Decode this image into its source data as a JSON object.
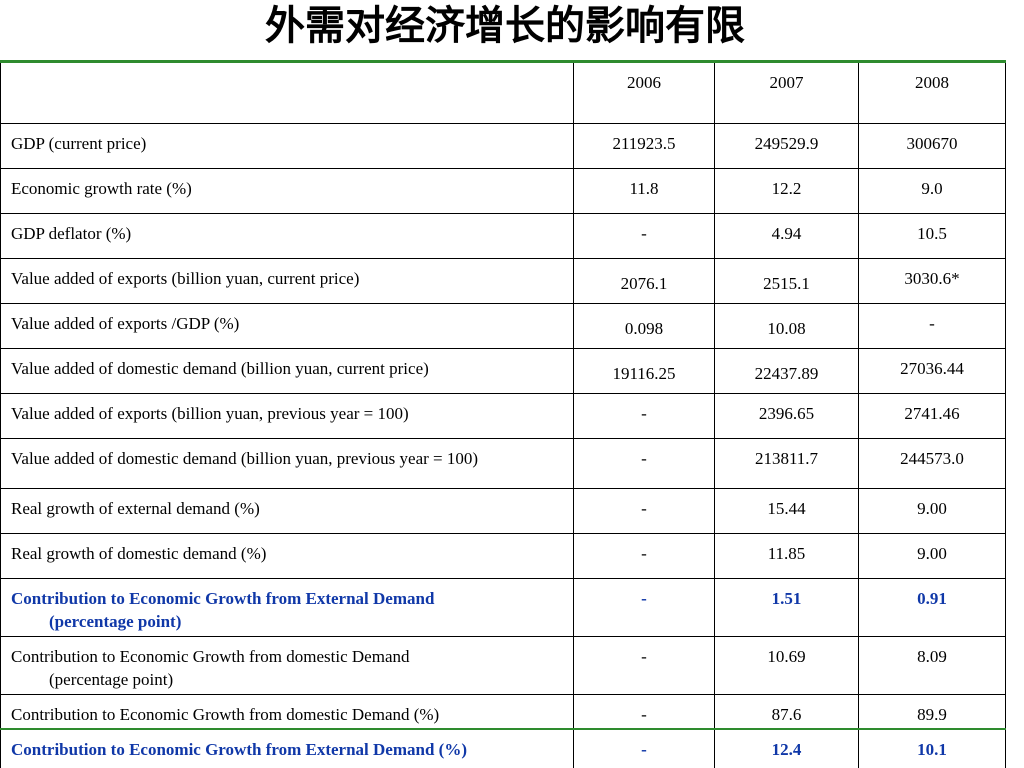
{
  "title": "外需对经济增长的影响有限",
  "colors": {
    "highlight": "#1038a8",
    "rule": "#2e8b2e"
  },
  "chart_data": {
    "type": "table",
    "columns": [
      "",
      "2006",
      "2007",
      "2008"
    ],
    "rows": [
      {
        "label": "GDP (current price)",
        "values": [
          "211923.5",
          "249529.9",
          "300670"
        ]
      },
      {
        "label": "Economic growth rate (%)",
        "values": [
          "11.8",
          "12.2",
          "9.0"
        ]
      },
      {
        "label": "GDP deflator (%)",
        "values": [
          "-",
          "4.94",
          "10.5"
        ]
      },
      {
        "label": "Value added of exports (billion yuan, current price)",
        "values": [
          "2076.1",
          "2515.1",
          "3030.6*"
        ]
      },
      {
        "label": "Value added of exports /GDP (%)",
        "values": [
          "0.098",
          "10.08",
          "-"
        ]
      },
      {
        "label": "Value added of domestic demand (billion yuan, current price)",
        "values": [
          "19116.25",
          "22437.89",
          "27036.44"
        ]
      },
      {
        "label": "Value added of exports (billion yuan, previous year = 100)",
        "values": [
          "-",
          "2396.65",
          "2741.46"
        ]
      },
      {
        "label": "Value added of domestic demand (billion yuan, previous year = 100)",
        "values": [
          "-",
          "213811.7",
          "244573.0"
        ]
      },
      {
        "label": "Real growth of external demand (%)",
        "values": [
          "-",
          "15.44",
          "9.00"
        ]
      },
      {
        "label": "Real growth of domestic demand (%)",
        "values": [
          "-",
          "11.85",
          "9.00"
        ]
      },
      {
        "label": "Contribution to Economic Growth from External Demand",
        "label_cont": "(percentage point)",
        "values": [
          "-",
          "1.51",
          "0.91"
        ]
      },
      {
        "label": "Contribution to Economic Growth from domestic Demand",
        "label_cont": "(percentage point)",
        "values": [
          "-",
          "10.69",
          "8.09"
        ]
      },
      {
        "label": "Contribution to Economic Growth from domestic Demand (%)",
        "values": [
          "-",
          "87.6",
          "89.9"
        ]
      },
      {
        "label": "Contribution to Economic Growth from External Demand (%)",
        "values": [
          "-",
          "12.4",
          "10.1"
        ]
      }
    ]
  }
}
